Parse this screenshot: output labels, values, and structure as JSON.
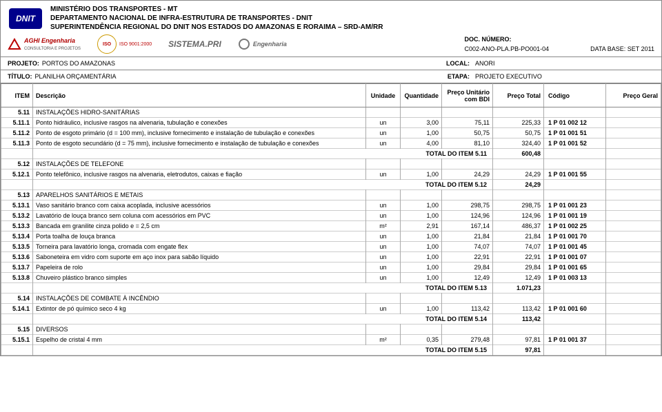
{
  "header": {
    "line1": "MINISTÉRIO DOS TRANSPORTES - MT",
    "line2": "DEPARTAMENTO NACIONAL DE INFRA-ESTRUTURA DE TRANSPORTES - DNIT",
    "line3": "SUPERINTENDÊNCIA REGIONAL DO DNIT NOS ESTADOS DO AMAZONAS E RORAIMA – SRD-AM/RR",
    "logo_text": "DNIT"
  },
  "partners": {
    "p1": "AGHI Engenharia",
    "p1_sub": "CONSULTORIA E PROJETOS",
    "p2": "ISO 9001:2000",
    "p3": "SISTEMA.PRI",
    "p4": "Engenharia"
  },
  "docmeta": {
    "doc_lbl": "DOC. NÚMERO:",
    "doc_num": "C002-ANO-PLA.PB-PO001-04",
    "base_lbl": "DATA BASE: SET 2011"
  },
  "proj": {
    "projeto_lbl": "PROJETO:",
    "projeto": "PORTOS DO AMAZONAS",
    "local_lbl": "LOCAL:",
    "local": "ANORI",
    "titulo_lbl": "TÍTULO:",
    "titulo": "PLANILHA ORÇAMENTÁRIA",
    "etapa_lbl": "ETAPA:",
    "etapa": "PROJETO EXECUTIVO"
  },
  "columns": {
    "item": "ITEM",
    "desc": "Descrição",
    "un": "Unidade",
    "qtd": "Quantidade",
    "pu": "Preço Unitário com BDI",
    "pt": "Preço Total",
    "cod": "Código",
    "pg": "Preço Geral"
  },
  "rows": [
    {
      "t": "sec",
      "item": "5.11",
      "desc": "INSTALAÇÕES HIDRO-SANITÁRIAS"
    },
    {
      "t": "ln",
      "item": "5.11.1",
      "desc": "Ponto hidráulico, inclusive rasgos na alvenaria, tubulação e conexões",
      "un": "un",
      "qtd": "3,00",
      "pu": "75,11",
      "pt": "225,33",
      "cod": "1 P 01 002 12"
    },
    {
      "t": "ln",
      "item": "5.11.2",
      "desc": "Ponto de esgoto primário (d = 100 mm), inclusive fornecimento e instalação de tubulação e conexões",
      "un": "un",
      "qtd": "1,00",
      "pu": "50,75",
      "pt": "50,75",
      "cod": "1 P 01 001 51"
    },
    {
      "t": "ln",
      "item": "5.11.3",
      "desc": "Ponto de esgoto secundário (d = 75 mm), inclusive fornecimento e instalação de tubulação e conexões",
      "un": "un",
      "qtd": "4,00",
      "pu": "81,10",
      "pt": "324,40",
      "cod": "1 P 01 001 52"
    },
    {
      "t": "tot",
      "desc": "TOTAL DO ITEM 5.11",
      "pt": "600,48"
    },
    {
      "t": "sec",
      "item": "5.12",
      "desc": "INSTALAÇÕES DE TELEFONE"
    },
    {
      "t": "ln",
      "item": "5.12.1",
      "desc": "Ponto telefônico, inclusive rasgos na alvenaria, eletrodutos, caixas e fiação",
      "un": "un",
      "qtd": "1,00",
      "pu": "24,29",
      "pt": "24,29",
      "cod": "1 P 01 001 55"
    },
    {
      "t": "tot",
      "desc": "TOTAL DO ITEM 5.12",
      "pt": "24,29"
    },
    {
      "t": "sec",
      "item": "5.13",
      "desc": "APARELHOS SANITÁRIOS E METAIS"
    },
    {
      "t": "ln",
      "item": "5.13.1",
      "desc": "Vaso sanitário branco com caixa acoplada, inclusive acessórios",
      "un": "un",
      "qtd": "1,00",
      "pu": "298,75",
      "pt": "298,75",
      "cod": "1 P 01 001 23"
    },
    {
      "t": "ln",
      "item": "5.13.2",
      "desc": "Lavatório de louça branco sem coluna com acessórios em PVC",
      "un": "un",
      "qtd": "1,00",
      "pu": "124,96",
      "pt": "124,96",
      "cod": "1 P 01 001 19"
    },
    {
      "t": "ln",
      "item": "5.13.3",
      "desc": "Bancada em granilite cinza polido e = 2,5 cm",
      "un": "m²",
      "qtd": "2,91",
      "pu": "167,14",
      "pt": "486,37",
      "cod": "1 P 01 002 25"
    },
    {
      "t": "ln",
      "item": "5.13.4",
      "desc": "Porta toalha de louça branca",
      "un": "un",
      "qtd": "1,00",
      "pu": "21,84",
      "pt": "21,84",
      "cod": "1 P 01 001 70"
    },
    {
      "t": "ln",
      "item": "5.13.5",
      "desc": "Torneira para lavatório longa, cromada com engate flex",
      "un": "un",
      "qtd": "1,00",
      "pu": "74,07",
      "pt": "74,07",
      "cod": "1 P 01 001 45"
    },
    {
      "t": "ln",
      "item": "5.13.6",
      "desc": "Saboneteira em vidro com suporte em aço inox para sabão líquido",
      "un": "un",
      "qtd": "1,00",
      "pu": "22,91",
      "pt": "22,91",
      "cod": "1 P 01 001 07"
    },
    {
      "t": "ln",
      "item": "5.13.7",
      "desc": "Papeleira de rolo",
      "un": "un",
      "qtd": "1,00",
      "pu": "29,84",
      "pt": "29,84",
      "cod": "1 P 01 001 65"
    },
    {
      "t": "ln",
      "item": "5.13.8",
      "desc": "Chuveiro plástico branco simples",
      "un": "un",
      "qtd": "1,00",
      "pu": "12,49",
      "pt": "12,49",
      "cod": "1 P 01 003 13"
    },
    {
      "t": "tot",
      "desc": "TOTAL DO ITEM 5.13",
      "pt": "1.071,23"
    },
    {
      "t": "sec",
      "item": "5.14",
      "desc": "INSTALAÇÕES DE COMBATE À INCÊNDIO"
    },
    {
      "t": "ln",
      "item": "5.14.1",
      "desc": "Extintor de pó químico seco 4 kg",
      "un": "un",
      "qtd": "1,00",
      "pu": "113,42",
      "pt": "113,42",
      "cod": "1 P 01 001 60"
    },
    {
      "t": "tot",
      "desc": "TOTAL DO ITEM 5.14",
      "pt": "113,42"
    },
    {
      "t": "sec",
      "item": "5.15",
      "desc": "DIVERSOS"
    },
    {
      "t": "ln",
      "item": "5.15.1",
      "desc": "Espelho de cristal 4 mm",
      "un": "m²",
      "qtd": "0,35",
      "pu": "279,48",
      "pt": "97,81",
      "cod": "1 P 01 001 37"
    },
    {
      "t": "tot",
      "desc": "TOTAL DO ITEM 5.15",
      "pt": "97,81"
    }
  ]
}
